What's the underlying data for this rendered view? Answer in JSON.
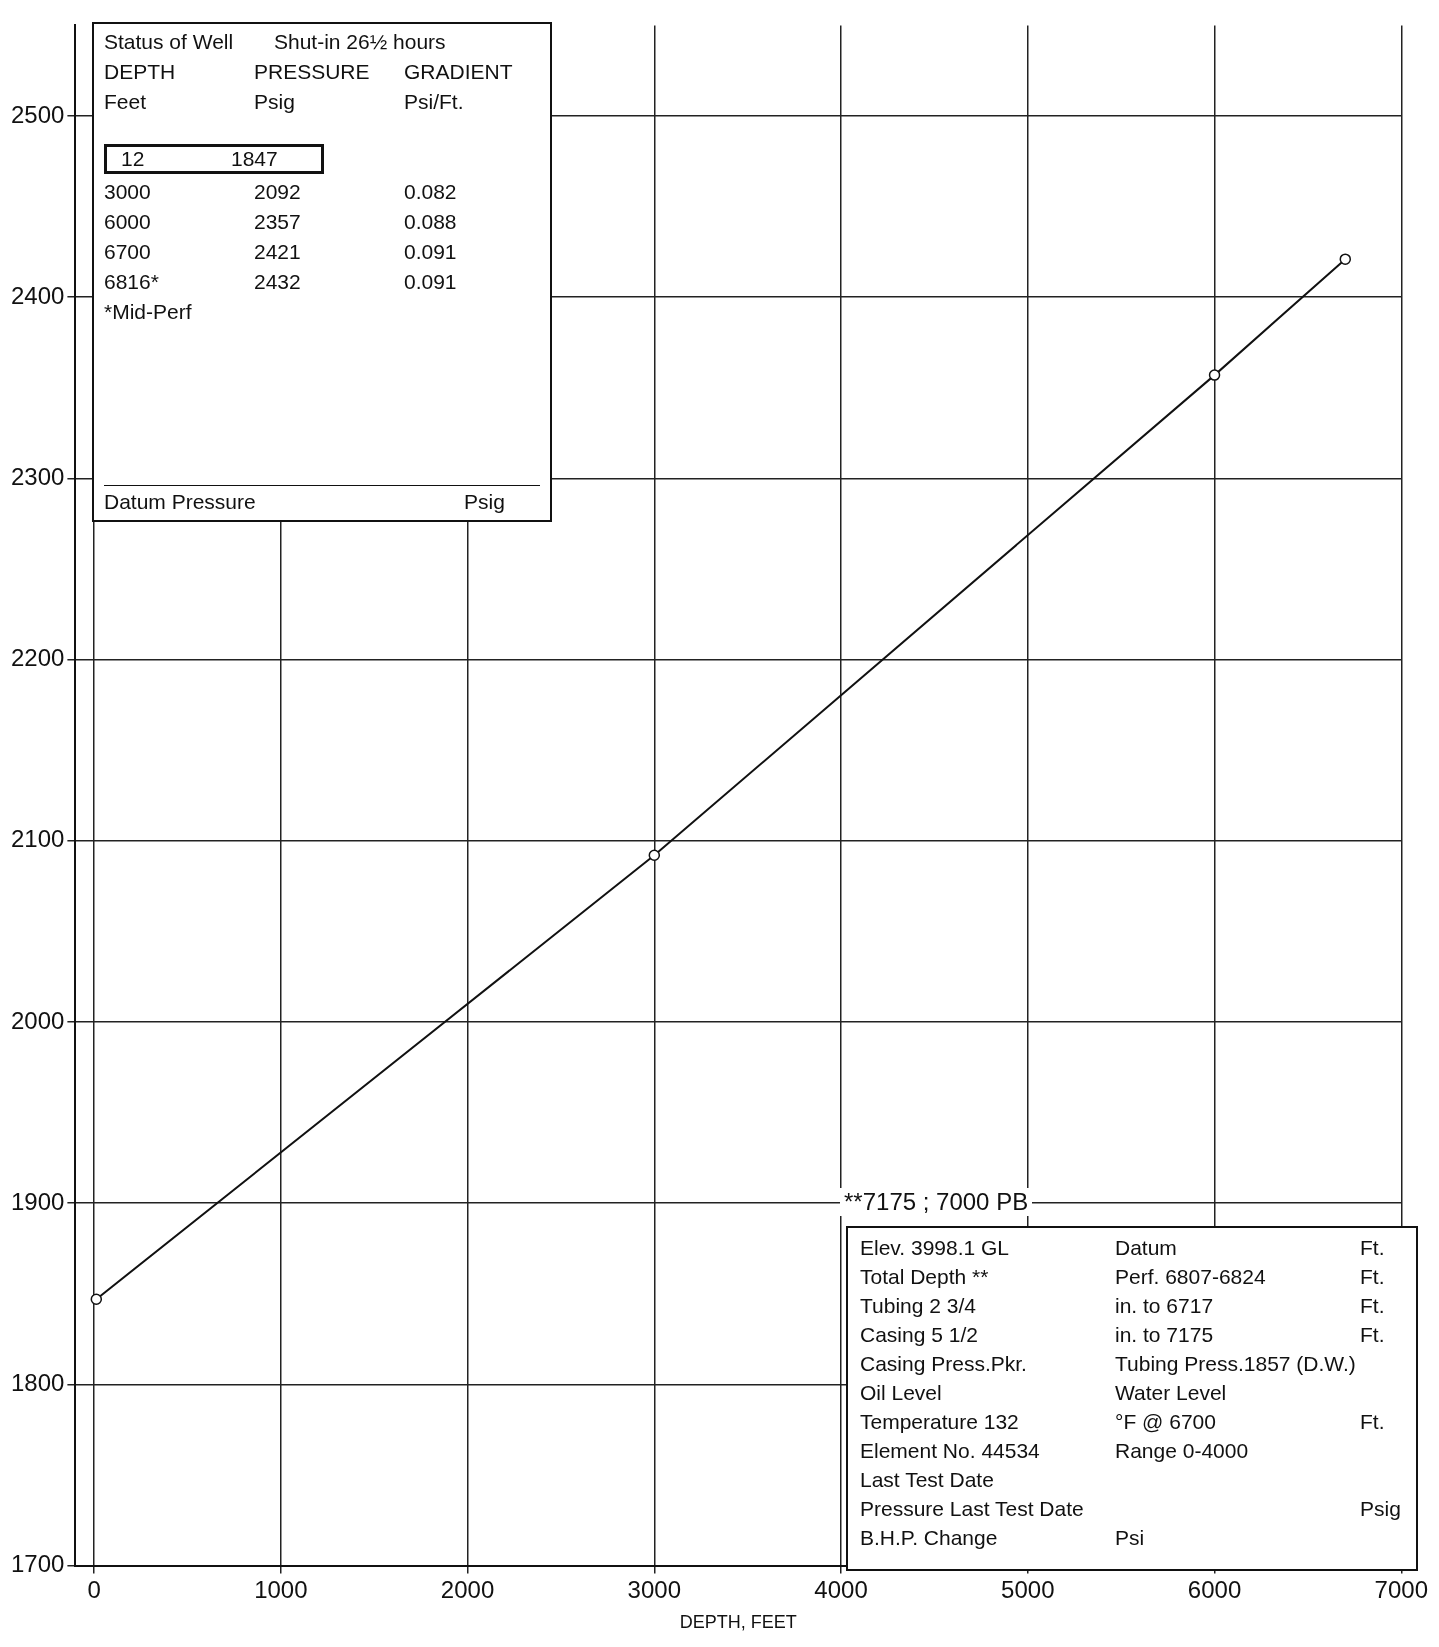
{
  "chart_data": {
    "type": "line",
    "xlabel": "DEPTH, FEET",
    "x": [
      12,
      3000,
      6000,
      6700
    ],
    "series": [
      {
        "color": "#111111",
        "values": [
          1847,
          2092,
          2357,
          2421
        ]
      }
    ],
    "xlim": [
      -100,
      7000
    ],
    "xticks": [
      0,
      1000,
      2000,
      3000,
      4000,
      5000,
      6000,
      7000
    ],
    "ylim": [
      1700,
      2550
    ],
    "yticks": [
      1700,
      1800,
      1900,
      2000,
      2100,
      2200,
      2300,
      2400,
      2500
    ],
    "grid": true,
    "marker": "circle",
    "line_style": "solid",
    "legend": false,
    "annotations": [
      "Status of Well\tShut-in 26½ hours",
      "DEPTH\tPRESSURE\tGRADIENT",
      "Feet\tPsig\tPsi/Ft.",
      "12\t1847",
      "3000\t2092\t0.082",
      "6000\t2357\t0.088",
      "6700\t2421\t0.091",
      "6816*\t2432\t0.091",
      "*Mid-Perf",
      "Datum Pressure\t\tPsig",
      "**7175 ; 7000 PB",
      "Elev. 3998.1 GL\tDatum\tFt.",
      "Total Depth **\tPerf. 6807-6824\tFt.",
      "Tubing 2 3/4\tin. to 6717\tFt.",
      "Casing 5 1/2\tin. to 7175\tFt.",
      "Casing Press.Pkr.\tTubing Press.1857 (D.W.)",
      "Oil Level\tWater Level",
      "Temperature 132\t°F @ 6700\tFt.",
      "Element No. 44534\tRange 0-4000",
      "Last Test Date",
      "Pressure Last Test Date\t\tPsig",
      "B.H.P. Change\tPsi"
    ]
  }
}
